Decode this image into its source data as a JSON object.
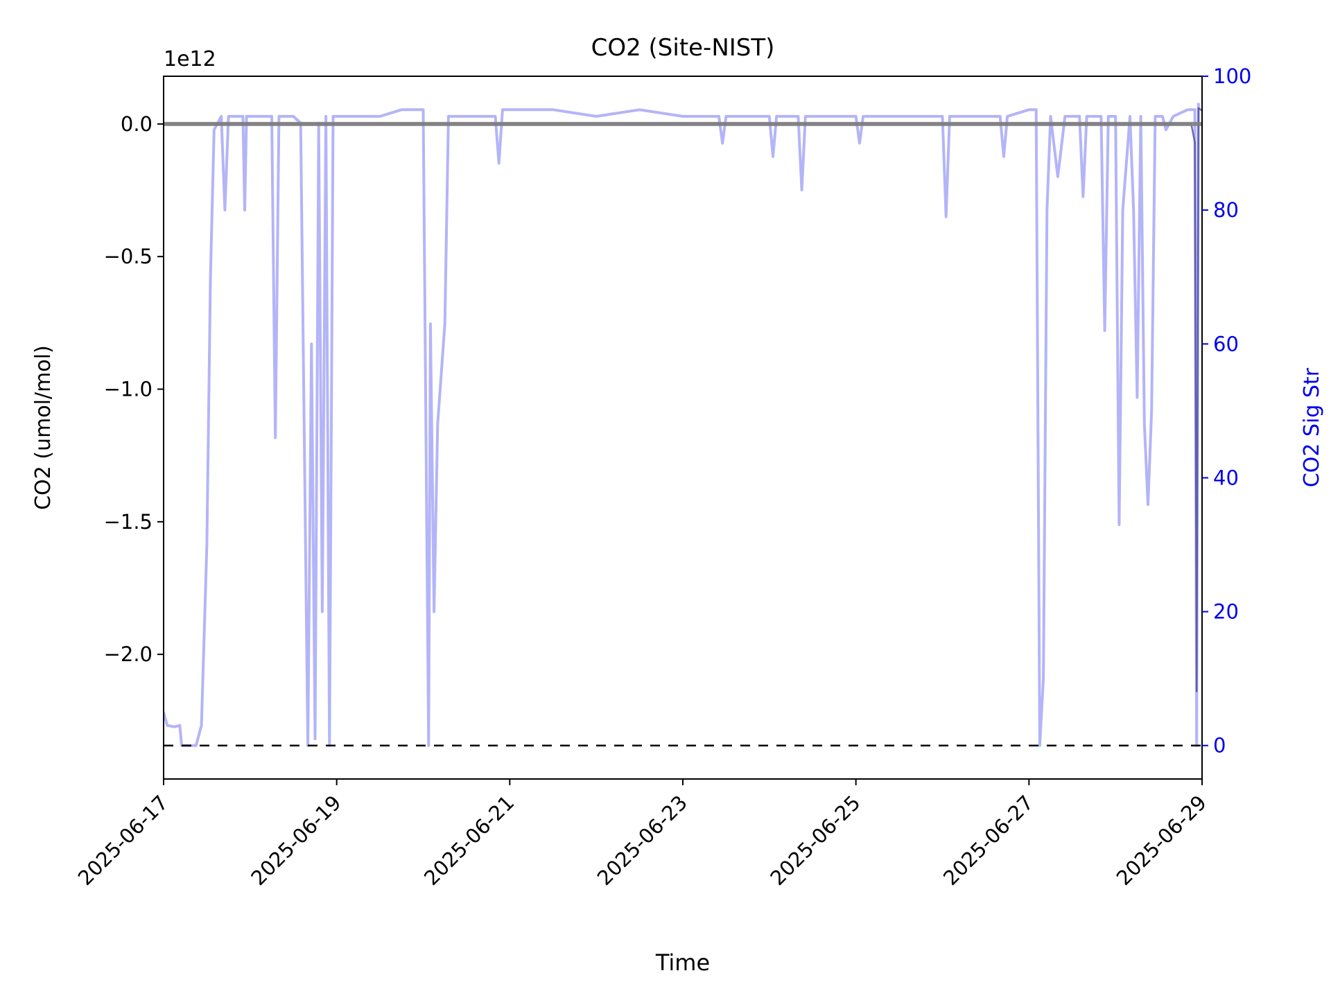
{
  "chart_data": {
    "type": "line",
    "title": "CO2 (Site-NIST)",
    "xlabel": "Time",
    "ylabel_left": "CO2 (umol/mol)",
    "ylabel_right": "CO2 Sig Str",
    "left_axis_offset_label": "1e12",
    "x_ticks": [
      "2025-06-17",
      "2025-06-19",
      "2025-06-21",
      "2025-06-23",
      "2025-06-25",
      "2025-06-27",
      "2025-06-29"
    ],
    "xlim": [
      "2025-06-17",
      "2025-06-29"
    ],
    "left_ticks": [
      {
        "value": 0.0,
        "label": "0.0"
      },
      {
        "value": -0.5,
        "label": "−0.5"
      },
      {
        "value": -1.0,
        "label": "−1.0"
      },
      {
        "value": -1.5,
        "label": "−1.5"
      },
      {
        "value": -2.0,
        "label": "−2.0"
      }
    ],
    "left_ylim": [
      -2.47,
      0.18
    ],
    "left_unit_multiplier": 1000000000000.0,
    "right_ticks": [
      {
        "value": 0,
        "label": "0"
      },
      {
        "value": 20,
        "label": "20"
      },
      {
        "value": 40,
        "label": "40"
      },
      {
        "value": 60,
        "label": "60"
      },
      {
        "value": 80,
        "label": "80"
      },
      {
        "value": 100,
        "label": "100"
      }
    ],
    "right_ylim": [
      -5,
      100
    ],
    "reference_lines": [
      {
        "axis": "left",
        "value": 0.0,
        "style": "solid",
        "color": "#808080"
      },
      {
        "axis": "right",
        "value": 0,
        "style": "dashed",
        "color": "#000000"
      }
    ],
    "series": [
      {
        "axis": "right",
        "color": "#b0b0f8",
        "points": [
          [
            "2025-06-17 00:00",
            5
          ],
          [
            "2025-06-17 01:00",
            3
          ],
          [
            "2025-06-17 03:00",
            2.8
          ],
          [
            "2025-06-17 04:30",
            3
          ],
          [
            "2025-06-17 05:00",
            0
          ],
          [
            "2025-06-17 09:00",
            0
          ],
          [
            "2025-06-17 10:30",
            3
          ],
          [
            "2025-06-17 12:00",
            30
          ],
          [
            "2025-06-17 13:00",
            70
          ],
          [
            "2025-06-17 14:00",
            92
          ],
          [
            "2025-06-17 16:00",
            94
          ],
          [
            "2025-06-17 17:00",
            80
          ],
          [
            "2025-06-17 18:00",
            94
          ],
          [
            "2025-06-17 22:00",
            94
          ],
          [
            "2025-06-17 22:30",
            80
          ],
          [
            "2025-06-17 23:00",
            94
          ],
          [
            "2025-06-18 06:00",
            94
          ],
          [
            "2025-06-18 07:00",
            46
          ],
          [
            "2025-06-18 08:00",
            94
          ],
          [
            "2025-06-18 12:00",
            94
          ],
          [
            "2025-06-18 14:00",
            93
          ],
          [
            "2025-06-18 16:00",
            0
          ],
          [
            "2025-06-18 17:00",
            60
          ],
          [
            "2025-06-18 18:00",
            1
          ],
          [
            "2025-06-18 19:00",
            93
          ],
          [
            "2025-06-18 20:00",
            20
          ],
          [
            "2025-06-18 21:00",
            94
          ],
          [
            "2025-06-18 22:00",
            0
          ],
          [
            "2025-06-18 23:00",
            94
          ],
          [
            "2025-06-19 12:00",
            94
          ],
          [
            "2025-06-19 18:00",
            95
          ],
          [
            "2025-06-20 00:00",
            95
          ],
          [
            "2025-06-20 01:30",
            0
          ],
          [
            "2025-06-20 02:00",
            63
          ],
          [
            "2025-06-20 03:00",
            20
          ],
          [
            "2025-06-20 04:00",
            48
          ],
          [
            "2025-06-20 06:00",
            63
          ],
          [
            "2025-06-20 07:00",
            94
          ],
          [
            "2025-06-20 12:00",
            94
          ],
          [
            "2025-06-20 20:00",
            94
          ],
          [
            "2025-06-20 21:00",
            87
          ],
          [
            "2025-06-20 22:00",
            95
          ],
          [
            "2025-06-21 12:00",
            95
          ],
          [
            "2025-06-22 00:00",
            94
          ],
          [
            "2025-06-22 12:00",
            95
          ],
          [
            "2025-06-23 00:00",
            94
          ],
          [
            "2025-06-23 10:00",
            94
          ],
          [
            "2025-06-23 11:00",
            90
          ],
          [
            "2025-06-23 12:00",
            94
          ],
          [
            "2025-06-24 00:00",
            94
          ],
          [
            "2025-06-24 01:00",
            88
          ],
          [
            "2025-06-24 02:00",
            94
          ],
          [
            "2025-06-24 08:00",
            94
          ],
          [
            "2025-06-24 09:00",
            83
          ],
          [
            "2025-06-24 10:00",
            94
          ],
          [
            "2025-06-25 00:00",
            94
          ],
          [
            "2025-06-25 01:00",
            90
          ],
          [
            "2025-06-25 02:00",
            94
          ],
          [
            "2025-06-25 12:00",
            94
          ],
          [
            "2025-06-25 18:00",
            94
          ],
          [
            "2025-06-26 00:00",
            94
          ],
          [
            "2025-06-26 01:00",
            79
          ],
          [
            "2025-06-26 02:00",
            94
          ],
          [
            "2025-06-26 12:00",
            94
          ],
          [
            "2025-06-26 16:00",
            94
          ],
          [
            "2025-06-26 17:00",
            88
          ],
          [
            "2025-06-26 18:00",
            94
          ],
          [
            "2025-06-27 00:00",
            95
          ],
          [
            "2025-06-27 02:00",
            95
          ],
          [
            "2025-06-27 03:00",
            0
          ],
          [
            "2025-06-27 04:00",
            10
          ],
          [
            "2025-06-27 05:00",
            80
          ],
          [
            "2025-06-27 06:00",
            94
          ],
          [
            "2025-06-27 08:00",
            85
          ],
          [
            "2025-06-27 10:00",
            94
          ],
          [
            "2025-06-27 14:00",
            94
          ],
          [
            "2025-06-27 15:00",
            82
          ],
          [
            "2025-06-27 16:00",
            94
          ],
          [
            "2025-06-27 20:00",
            94
          ],
          [
            "2025-06-27 21:00",
            62
          ],
          [
            "2025-06-27 22:00",
            94
          ],
          [
            "2025-06-28 00:00",
            94
          ],
          [
            "2025-06-28 01:00",
            33
          ],
          [
            "2025-06-28 02:00",
            80
          ],
          [
            "2025-06-28 04:00",
            94
          ],
          [
            "2025-06-28 05:00",
            80
          ],
          [
            "2025-06-28 06:00",
            52
          ],
          [
            "2025-06-28 07:00",
            94
          ],
          [
            "2025-06-28 08:00",
            48
          ],
          [
            "2025-06-28 09:00",
            36
          ],
          [
            "2025-06-28 10:00",
            50
          ],
          [
            "2025-06-28 11:00",
            94
          ],
          [
            "2025-06-28 13:00",
            94
          ],
          [
            "2025-06-28 14:00",
            92
          ],
          [
            "2025-06-28 16:00",
            94
          ],
          [
            "2025-06-28 20:00",
            95
          ],
          [
            "2025-06-28 22:00",
            95
          ],
          [
            "2025-06-28 22:30",
            0
          ],
          [
            "2025-06-28 23:00",
            96
          ]
        ]
      },
      {
        "axis": "left",
        "color": "#4a4a9a",
        "points": [
          [
            "2025-06-17 00:00",
            0.0
          ],
          [
            "2025-06-28 21:00",
            0.0
          ],
          [
            "2025-06-28 22:00",
            -0.07
          ],
          [
            "2025-06-28 22:30",
            -2.14
          ],
          [
            "2025-06-28 23:00",
            0.06
          ],
          [
            "2025-06-29 00:00",
            0.05
          ]
        ]
      }
    ]
  }
}
